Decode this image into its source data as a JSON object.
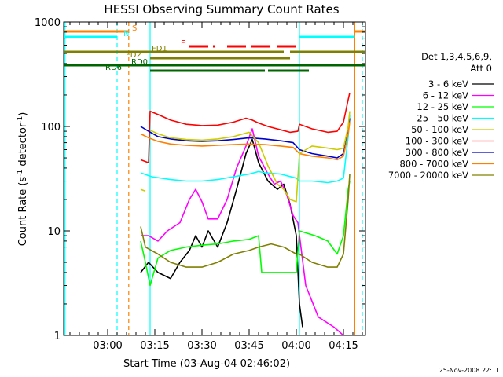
{
  "chart_data": {
    "type": "line",
    "title": "HESSI Observing Summary Count Rates",
    "xlabel": "Start Time (03-Aug-04 02:46:02)",
    "ylabel_main": "Count Rate (s",
    "ylabel_sup1": "-1",
    "ylabel_mid": " detector",
    "ylabel_sup2": "-1",
    "ylabel_end": ")",
    "yscale": "log",
    "ylim": [
      1,
      1000
    ],
    "xlim_min": [
      166,
      262
    ],
    "x_ticks": [
      {
        "min": 180,
        "label": "03:00"
      },
      {
        "min": 195,
        "label": "03:15"
      },
      {
        "min": 210,
        "label": "03:30"
      },
      {
        "min": 225,
        "label": "03:45"
      },
      {
        "min": 240,
        "label": "04:00"
      },
      {
        "min": 255,
        "label": "04:15"
      }
    ],
    "y_ticks": [
      {
        "v": 1,
        "label": "1"
      },
      {
        "v": 10,
        "label": "10"
      },
      {
        "v": 100,
        "label": "100"
      },
      {
        "v": 1000,
        "label": "1000"
      }
    ],
    "legend_header": [
      "Det 1,3,4,5,6,9,",
      "Att 0"
    ],
    "timestamp": "25-Nov-2008 22:11",
    "series": [
      {
        "name": "3 - 6 keV",
        "color": "#000000",
        "points": [
          [
            190.5,
            4
          ],
          [
            193,
            5
          ],
          [
            196,
            4
          ],
          [
            200,
            3.5
          ],
          [
            203,
            5
          ],
          [
            206,
            6.5
          ],
          [
            208,
            9
          ],
          [
            210,
            7
          ],
          [
            212,
            10
          ],
          [
            215,
            7
          ],
          [
            218,
            12
          ],
          [
            221,
            25
          ],
          [
            224,
            55
          ],
          [
            226,
            75
          ],
          [
            228,
            45
          ],
          [
            231,
            30
          ],
          [
            234,
            25
          ],
          [
            236,
            28
          ],
          [
            238,
            18
          ],
          [
            240,
            9
          ],
          [
            241,
            2
          ],
          [
            242,
            1.2
          ]
        ]
      },
      {
        "name": "6 - 12 keV",
        "color": "#ff00ff",
        "points": [
          [
            190.5,
            9
          ],
          [
            193,
            9
          ],
          [
            196,
            8
          ],
          [
            199,
            10
          ],
          [
            203,
            12
          ],
          [
            206,
            20
          ],
          [
            208,
            25
          ],
          [
            210,
            19
          ],
          [
            212,
            13
          ],
          [
            215,
            13
          ],
          [
            218,
            20
          ],
          [
            221,
            40
          ],
          [
            224,
            65
          ],
          [
            226,
            95
          ],
          [
            228,
            52
          ],
          [
            231,
            35
          ],
          [
            233,
            28
          ],
          [
            235,
            30
          ],
          [
            237,
            22
          ],
          [
            239,
            14
          ],
          [
            240.5,
            12
          ],
          [
            243,
            3
          ],
          [
            247,
            1.5
          ],
          [
            252,
            1.2
          ],
          [
            255,
            1
          ]
        ]
      },
      {
        "name": "12 - 25 keV",
        "color": "#00ff00",
        "points": [
          [
            190.5,
            8
          ],
          [
            192,
            5
          ],
          [
            193.5,
            3
          ],
          [
            196,
            5.5
          ],
          [
            200,
            6.5
          ],
          [
            205,
            7
          ],
          [
            210,
            7.3
          ],
          [
            215,
            7.5
          ],
          [
            220,
            8
          ],
          [
            225,
            8.3
          ],
          [
            228,
            9
          ],
          [
            229,
            4
          ],
          [
            234,
            4
          ],
          [
            240,
            4
          ],
          [
            241,
            10
          ],
          [
            246,
            9
          ],
          [
            250,
            8
          ],
          [
            253,
            6
          ],
          [
            255,
            9
          ],
          [
            256.5,
            25
          ],
          [
            257,
            30
          ]
        ]
      },
      {
        "name": "25 - 50 keV",
        "color": "#00ffff",
        "points": [
          [
            190.5,
            36
          ],
          [
            194,
            33
          ],
          [
            200,
            31
          ],
          [
            205,
            30
          ],
          [
            210,
            30
          ],
          [
            215,
            31
          ],
          [
            220,
            33
          ],
          [
            225,
            35
          ],
          [
            228,
            37
          ],
          [
            230,
            36
          ],
          [
            235,
            35
          ],
          [
            240,
            32
          ],
          [
            241,
            30
          ],
          [
            245,
            30
          ],
          [
            250,
            29
          ],
          [
            253,
            30
          ],
          [
            255,
            32
          ],
          [
            256.5,
            80
          ],
          [
            257,
            130
          ]
        ]
      },
      {
        "name": "50 - 100 keV",
        "color": "#cccc00",
        "points": [
          [
            190.5,
            25
          ],
          [
            192,
            24
          ]
        ]
      },
      {
        "name": "100 - 300 keV",
        "color": "#ff0000",
        "points": [
          [
            190.5,
            48
          ],
          [
            193,
            45
          ],
          [
            193.5,
            140
          ],
          [
            196,
            130
          ],
          [
            200,
            115
          ],
          [
            205,
            105
          ],
          [
            210,
            102
          ],
          [
            215,
            103
          ],
          [
            220,
            110
          ],
          [
            224,
            120
          ],
          [
            226,
            115
          ],
          [
            228,
            108
          ],
          [
            231,
            100
          ],
          [
            235,
            93
          ],
          [
            238,
            88
          ],
          [
            240.5,
            90
          ],
          [
            241,
            105
          ],
          [
            245,
            95
          ],
          [
            250,
            88
          ],
          [
            253,
            90
          ],
          [
            255,
            110
          ],
          [
            256.5,
            180
          ],
          [
            257,
            210
          ]
        ]
      },
      {
        "name": "300 - 800 keV",
        "color": "#0000cc",
        "points": [
          [
            190.5,
            100
          ],
          [
            193,
            90
          ],
          [
            196,
            80
          ],
          [
            200,
            76
          ],
          [
            205,
            73
          ],
          [
            210,
            72
          ],
          [
            215,
            73
          ],
          [
            220,
            75
          ],
          [
            225,
            78
          ],
          [
            230,
            76
          ],
          [
            235,
            73
          ],
          [
            239,
            70
          ],
          [
            241,
            60
          ],
          [
            245,
            55
          ],
          [
            250,
            52
          ],
          [
            253,
            50
          ],
          [
            255,
            55
          ],
          [
            256.5,
            90
          ],
          [
            257,
            120
          ]
        ]
      },
      {
        "name": "800 - 7000 keV",
        "color": "#ff8000",
        "points": [
          [
            190.5,
            85
          ],
          [
            193,
            78
          ],
          [
            196,
            72
          ],
          [
            200,
            68
          ],
          [
            205,
            66
          ],
          [
            210,
            65
          ],
          [
            215,
            66
          ],
          [
            220,
            67
          ],
          [
            225,
            68
          ],
          [
            230,
            67
          ],
          [
            235,
            65
          ],
          [
            239,
            63
          ],
          [
            241,
            55
          ],
          [
            245,
            52
          ],
          [
            250,
            50
          ],
          [
            253,
            48
          ],
          [
            255,
            52
          ],
          [
            256.5,
            85
          ],
          [
            257,
            110
          ]
        ]
      },
      {
        "name": "7000 - 20000 keV",
        "color": "#808000",
        "points": [
          [
            190.5,
            11
          ],
          [
            192,
            7
          ],
          [
            196,
            6
          ],
          [
            200,
            5
          ],
          [
            205,
            4.5
          ],
          [
            210,
            4.5
          ],
          [
            215,
            5
          ],
          [
            220,
            6
          ],
          [
            225,
            6.5
          ],
          [
            228,
            7
          ],
          [
            232,
            7.5
          ],
          [
            236,
            7
          ],
          [
            240,
            6
          ],
          [
            241,
            6
          ],
          [
            245,
            5
          ],
          [
            250,
            4.5
          ],
          [
            253,
            4.5
          ],
          [
            255,
            6
          ],
          [
            256.5,
            20
          ],
          [
            257,
            35
          ]
        ]
      }
    ],
    "overlay_series": [
      {
        "name": "50 - 100 keV",
        "color": "#cccc00",
        "points": [
          [
            193.5,
            92
          ],
          [
            196,
            85
          ],
          [
            200,
            78
          ],
          [
            205,
            75
          ],
          [
            210,
            74
          ],
          [
            215,
            76
          ],
          [
            220,
            80
          ],
          [
            225,
            88
          ],
          [
            228,
            70
          ],
          [
            231,
            42
          ],
          [
            234,
            28
          ],
          [
            236,
            25
          ],
          [
            238,
            20
          ],
          [
            240,
            19
          ],
          [
            241,
            55
          ],
          [
            245,
            65
          ],
          [
            250,
            62
          ],
          [
            253,
            60
          ],
          [
            255,
            62
          ],
          [
            256.5,
            100
          ],
          [
            257,
            140
          ]
        ]
      }
    ],
    "vertical_lines": [
      {
        "min": 166.4,
        "color": "#00ffff",
        "style": "solid"
      },
      {
        "min": 183,
        "color": "#00ffff",
        "style": "dashed"
      },
      {
        "min": 186.7,
        "color": "#ff8000",
        "style": "dashed"
      },
      {
        "min": 193.5,
        "color": "#00ffff",
        "style": "solid"
      },
      {
        "min": 241,
        "color": "#00ffff",
        "style": "solid"
      },
      {
        "min": 258.6,
        "color": "#ff8000",
        "style": "solid"
      },
      {
        "min": 261,
        "color": "#00ffff",
        "style": "dashed"
      }
    ],
    "flags": [
      {
        "label": "S",
        "color": "#ff8000",
        "y": 40,
        "segments": [
          [
            166,
            186.7
          ],
          [
            258.6,
            262
          ]
        ]
      },
      {
        "label": "N",
        "color": "#00ffff",
        "y": 47,
        "segments": [
          [
            166,
            183
          ],
          [
            241,
            258.6
          ]
        ]
      },
      {
        "label": "F",
        "color": "#ff0000",
        "y": 59,
        "segments": [
          [
            206,
            214
          ],
          [
            218,
            232
          ],
          [
            234,
            241
          ]
        ]
      },
      {
        "label": "FD1",
        "color": "#808000",
        "y": 66,
        "segments": [
          [
            166,
            236
          ],
          [
            238,
            262
          ]
        ]
      },
      {
        "label": "FD2",
        "color": "#808000",
        "y": 74,
        "segments": [
          [
            193.5,
            238
          ]
        ]
      },
      {
        "label": "RD0",
        "color": "#006400",
        "y": 83,
        "segments": [
          [
            166,
            262
          ]
        ]
      },
      {
        "label": "RD6",
        "color": "#006400",
        "y": 90,
        "segments": [
          [
            193.5,
            230
          ],
          [
            231,
            244
          ]
        ]
      }
    ]
  }
}
